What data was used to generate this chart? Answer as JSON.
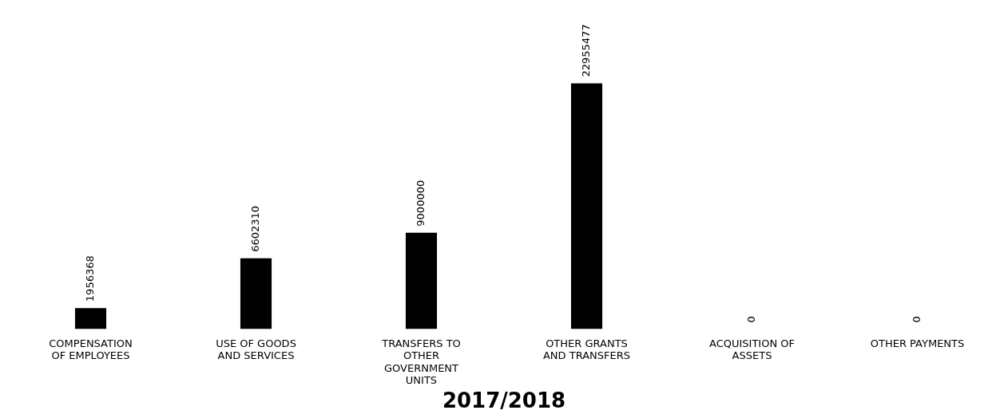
{
  "chart_data": {
    "type": "bar",
    "title": "2017/2018",
    "categories": [
      "COMPENSATION OF EMPLOYEES",
      "USE OF GOODS AND SERVICES",
      "TRANSFERS TO OTHER GOVERNMENT UNITS",
      "OTHER GRANTS AND TRANSFERS",
      "ACQUISITION OF ASSETS",
      "OTHER PAYMENTS"
    ],
    "values": [
      1956368,
      6602310,
      9000000,
      22955477,
      0,
      0
    ],
    "color": "#000000",
    "data_labels": true
  }
}
